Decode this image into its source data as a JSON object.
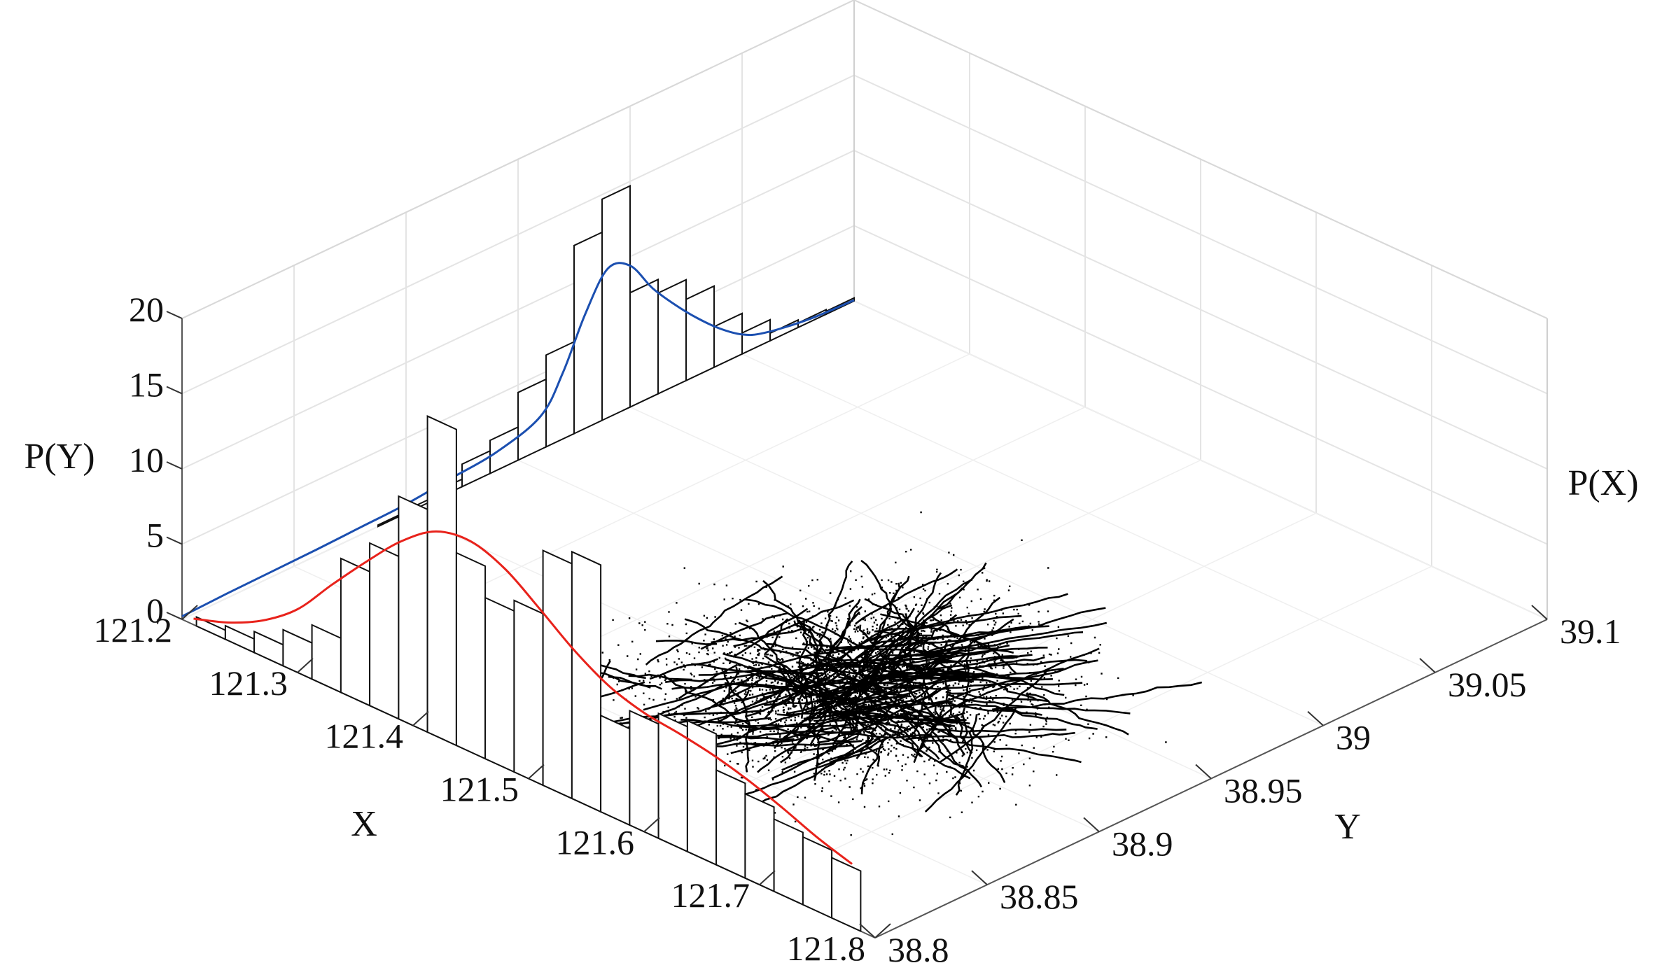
{
  "chart_data": {
    "type": "3d-scatter-with-marginal-histograms",
    "x_axis": {
      "label": "X",
      "range": [
        121.2,
        121.8
      ],
      "ticks": [
        121.2,
        121.3,
        121.4,
        121.5,
        121.6,
        121.7,
        121.8
      ],
      "tick_labels": [
        "121.2",
        "121.3",
        "121.4",
        "121.5",
        "121.6",
        "121.7",
        "121.8"
      ]
    },
    "y_axis": {
      "label": "Y",
      "range": [
        38.8,
        39.1
      ],
      "ticks": [
        38.8,
        38.85,
        38.9,
        38.95,
        39.0,
        39.05,
        39.1
      ],
      "tick_labels": [
        "38.8",
        "38.85",
        "38.9",
        "38.95",
        "39",
        "39.05",
        "39.1"
      ]
    },
    "z_axis": {
      "range": [
        0,
        20
      ],
      "ticks": [
        0,
        5,
        10,
        15,
        20
      ],
      "tick_labels": [
        "0",
        "5",
        "10",
        "15",
        "20"
      ]
    },
    "labels": {
      "left_wall": "P(Y)",
      "right_wall": "P(X)"
    },
    "grid": true,
    "histogram_x": {
      "bin_width": 0.025,
      "centers": [
        121.225,
        121.25,
        121.275,
        121.3,
        121.325,
        121.35,
        121.375,
        121.4,
        121.425,
        121.45,
        121.475,
        121.5,
        121.525,
        121.55,
        121.575,
        121.6,
        121.625,
        121.65,
        121.675,
        121.7,
        121.725,
        121.75,
        121.775
      ],
      "values": [
        0.6,
        0.9,
        1.4,
        2.4,
        3.6,
        8.9,
        10.8,
        14.8,
        21.0,
        12.8,
        10.7,
        11.4,
        15.6,
        16.4,
        6.4,
        7.6,
        8.3,
        8.7,
        6.3,
        5.6,
        4.8,
        4.5,
        4.0
      ]
    },
    "density_x": {
      "name": "",
      "color": "#e8221b",
      "x": [
        121.21,
        121.24,
        121.27,
        121.3,
        121.33,
        121.36,
        121.39,
        121.42,
        121.45,
        121.48,
        121.51,
        121.54,
        121.57,
        121.6,
        121.63,
        121.66,
        121.69,
        121.72,
        121.75,
        121.78
      ],
      "y": [
        0.4,
        1.2,
        2.4,
        4.2,
        6.9,
        9.5,
        11.9,
        13.6,
        14.0,
        13.2,
        11.6,
        9.9,
        8.6,
        7.9,
        7.6,
        7.2,
        6.6,
        5.8,
        4.9,
        4.2
      ]
    },
    "histogram_y": {
      "bin_width": 0.0125,
      "centers": [
        38.80625,
        38.81875,
        38.83125,
        38.84375,
        38.85625,
        38.86875,
        38.88125,
        38.89375,
        38.90625,
        38.91875,
        38.93125,
        38.94375,
        38.95625,
        38.96875,
        38.98125,
        38.99375,
        39.00625,
        39.01875,
        39.03125,
        39.04375,
        39.05625,
        39.06875,
        39.08125,
        39.09375
      ],
      "values": [
        0.0,
        0.0,
        0.0,
        0.0,
        0.0,
        0.0,
        0.0,
        0.1,
        0.2,
        0.5,
        1.5,
        2.2,
        4.5,
        6.1,
        12.5,
        14.7,
        7.6,
        6.7,
        5.4,
        2.7,
        1.4,
        0.5,
        0.3,
        0.2
      ]
    },
    "density_y": {
      "name": "",
      "color": "#1b4fb0",
      "x": [
        38.8,
        38.82,
        38.84,
        38.86,
        38.88,
        38.9,
        38.92,
        38.94,
        38.96,
        38.97,
        38.98,
        38.99,
        39.0,
        39.01,
        39.02,
        39.03,
        39.04,
        39.05,
        39.06,
        39.08,
        39.1
      ],
      "y": [
        0.2,
        0.3,
        0.35,
        0.4,
        0.5,
        0.6,
        0.9,
        1.2,
        2.2,
        4.4,
        7.6,
        9.9,
        9.4,
        7.2,
        5.4,
        3.8,
        2.4,
        1.3,
        0.7,
        0.2,
        0.05
      ]
    },
    "scatter_style": {
      "color": "#000000",
      "trajectory_count": 220,
      "noise_point_count": 2600,
      "random_seed": 7
    }
  }
}
